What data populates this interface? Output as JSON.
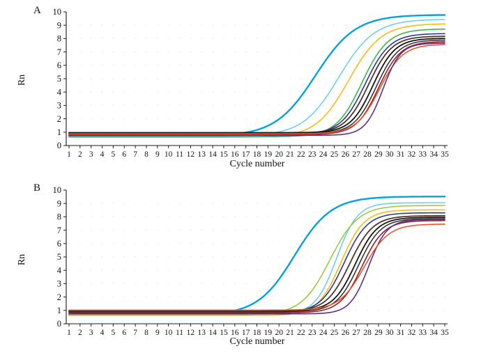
{
  "page": {
    "background": "#ffffff"
  },
  "chart_data": [
    {
      "panel_label": "A",
      "type": "line",
      "title": "",
      "xlabel": "Cycle number",
      "ylabel": "Rn",
      "xlim": [
        1,
        35
      ],
      "ylim": [
        0,
        10
      ],
      "xtick_step": 1,
      "ytick_step": 1,
      "legend": "none",
      "grid": {
        "style": "dotted",
        "color": "#c7d7e8"
      },
      "curve_model": "Rn(x) = baseline + (plateau - baseline) / (1 + exp(-k * (x - c50)))",
      "series": [
        {
          "name": "cyan",
          "color": "#00a3dd",
          "baseline": 0.7,
          "plateau": 9.78,
          "c50": 23.3,
          "k": 0.55,
          "width": 2.4
        },
        {
          "name": "light-cyan",
          "color": "#6fcdf2",
          "baseline": 0.73,
          "plateau": 9.45,
          "c50": 25.4,
          "k": 0.62,
          "width": 1.6
        },
        {
          "name": "gold",
          "color": "#fdb913",
          "baseline": 0.62,
          "plateau": 9.12,
          "c50": 26.3,
          "k": 0.68,
          "width": 1.6
        },
        {
          "name": "green",
          "color": "#3cb54a",
          "baseline": 0.66,
          "plateau": 8.72,
          "c50": 27.5,
          "k": 0.85,
          "width": 1.6
        },
        {
          "name": "dark-blue",
          "color": "#2b3a8f",
          "baseline": 0.84,
          "plateau": 8.38,
          "c50": 27.8,
          "k": 0.9,
          "width": 1.6
        },
        {
          "name": "dark-brown",
          "color": "#4f342a",
          "baseline": 0.92,
          "plateau": 8.18,
          "c50": 28.1,
          "k": 0.95,
          "width": 1.8
        },
        {
          "name": "black",
          "color": "#141414",
          "baseline": 0.96,
          "plateau": 8.02,
          "c50": 28.5,
          "k": 1.0,
          "width": 1.8
        },
        {
          "name": "dark-gray",
          "color": "#373737",
          "baseline": 0.9,
          "plateau": 7.9,
          "c50": 28.8,
          "k": 1.0,
          "width": 1.6
        },
        {
          "name": "dark-red",
          "color": "#8e2023",
          "baseline": 0.82,
          "plateau": 7.78,
          "c50": 29.0,
          "k": 1.0,
          "width": 1.6
        },
        {
          "name": "orange-red",
          "color": "#e8542c",
          "baseline": 0.87,
          "plateau": 7.58,
          "c50": 29.1,
          "k": 0.95,
          "width": 1.6
        },
        {
          "name": "purple",
          "color": "#5b2d8e",
          "baseline": 0.76,
          "plateau": 7.66,
          "c50": 29.4,
          "k": 1.25,
          "width": 1.6
        }
      ]
    },
    {
      "panel_label": "B",
      "type": "line",
      "title": "",
      "xlabel": "Cycle number",
      "ylabel": "Rn",
      "xlim": [
        1,
        35
      ],
      "ylim": [
        0,
        10
      ],
      "xtick_step": 1,
      "ytick_step": 1,
      "legend": "none",
      "grid": {
        "style": "dotted",
        "color": "#c7d7e8"
      },
      "curve_model": "Rn(x) = baseline + (plateau - baseline) / (1 + exp(-k * (x - c50)))",
      "series": [
        {
          "name": "cyan",
          "color": "#00a3dd",
          "baseline": 0.66,
          "plateau": 9.52,
          "c50": 21.4,
          "k": 0.6,
          "width": 2.4
        },
        {
          "name": "light-cyan",
          "color": "#6fcdf2",
          "baseline": 0.72,
          "plateau": 9.05,
          "c50": 25.2,
          "k": 1.05,
          "width": 1.6
        },
        {
          "name": "yellow-green",
          "color": "#9aca3c",
          "baseline": 0.68,
          "plateau": 8.85,
          "c50": 24.6,
          "k": 0.78,
          "width": 1.6
        },
        {
          "name": "gold",
          "color": "#fdb913",
          "baseline": 0.62,
          "plateau": 8.52,
          "c50": 25.6,
          "k": 0.95,
          "width": 1.6
        },
        {
          "name": "dark-blue",
          "color": "#2b3a8f",
          "baseline": 0.84,
          "plateau": 8.3,
          "c50": 25.9,
          "k": 0.95,
          "width": 1.6
        },
        {
          "name": "dark-brown",
          "color": "#4f342a",
          "baseline": 0.92,
          "plateau": 8.08,
          "c50": 26.4,
          "k": 0.95,
          "width": 1.8
        },
        {
          "name": "black",
          "color": "#141414",
          "baseline": 0.96,
          "plateau": 7.96,
          "c50": 26.9,
          "k": 1.0,
          "width": 1.8
        },
        {
          "name": "dark-gray",
          "color": "#373737",
          "baseline": 0.9,
          "plateau": 7.86,
          "c50": 27.2,
          "k": 1.0,
          "width": 1.6
        },
        {
          "name": "dark-red",
          "color": "#8e2023",
          "baseline": 0.82,
          "plateau": 7.72,
          "c50": 27.5,
          "k": 1.0,
          "width": 1.6
        },
        {
          "name": "purple",
          "color": "#5b2d8e",
          "baseline": 0.74,
          "plateau": 7.8,
          "c50": 28.1,
          "k": 1.2,
          "width": 1.6
        },
        {
          "name": "orange-red",
          "color": "#e8542c",
          "baseline": 1.02,
          "plateau": 7.46,
          "c50": 27.7,
          "k": 0.9,
          "width": 1.6
        }
      ]
    }
  ]
}
